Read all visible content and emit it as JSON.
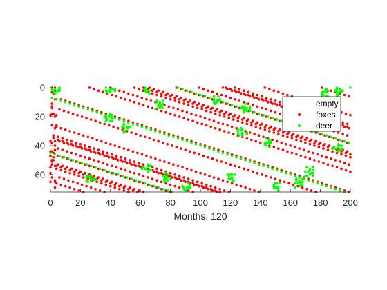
{
  "chart_data": {
    "type": "scatter",
    "xlabel": "Months: 120",
    "xlim": [
      0,
      200
    ],
    "ylim": [
      0,
      72
    ],
    "y_reversed": true,
    "x_ticks": [
      0,
      20,
      40,
      60,
      80,
      100,
      120,
      140,
      160,
      180,
      200
    ],
    "y_ticks": [
      0,
      20,
      40,
      60
    ],
    "grid": false,
    "legend_position": "top-right",
    "series": [
      {
        "name": "empty",
        "color": "#ffffff",
        "points": []
      },
      {
        "name": "foxes",
        "color": "#ff0000",
        "density": 0.12,
        "points": []
      },
      {
        "name": "deer",
        "color": "#00ff00",
        "density": 0.018,
        "clusters": [
          [
            3,
            1
          ],
          [
            40,
            0
          ],
          [
            64,
            1
          ],
          [
            73,
            12
          ],
          [
            39,
            20
          ],
          [
            50,
            28
          ],
          [
            64,
            55
          ],
          [
            77,
            62
          ],
          [
            90,
            68
          ],
          [
            128,
            30
          ],
          [
            150,
            68
          ],
          [
            166,
            66
          ],
          [
            183,
            3
          ],
          [
            192,
            3
          ],
          [
            191,
            41
          ],
          [
            130,
            14
          ],
          [
            110,
            8
          ],
          [
            27,
            62
          ],
          [
            120,
            62
          ],
          [
            173,
            58
          ],
          [
            145,
            38
          ]
        ],
        "points": []
      }
    ]
  }
}
